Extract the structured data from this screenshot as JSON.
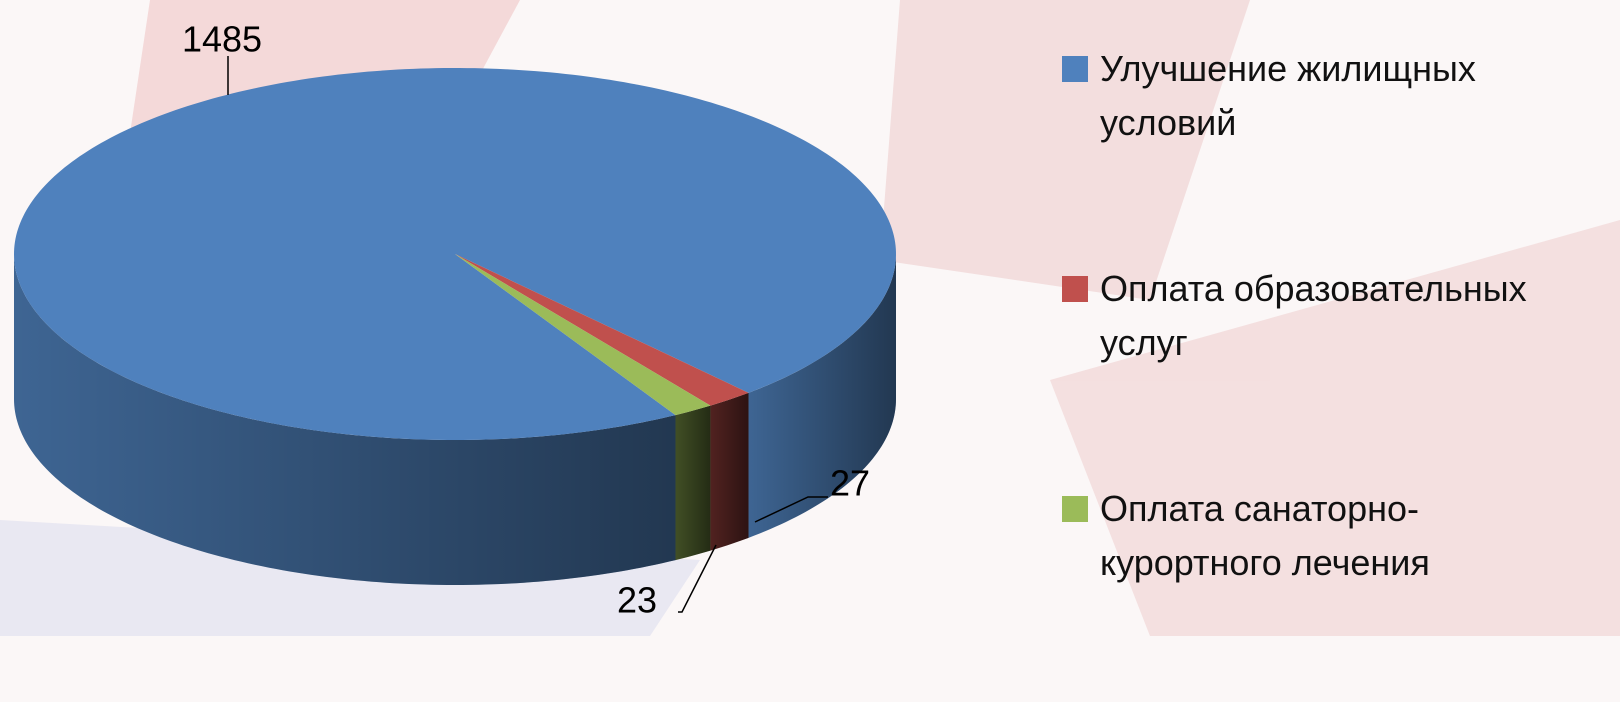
{
  "chart_data": {
    "type": "pie",
    "categories": [
      "Улучшение жилищных условий",
      "Оплата образовательных услуг",
      "Оплата санаторно-курортного лечения"
    ],
    "values": [
      1485,
      27,
      23
    ],
    "colors": [
      "#4f81bd",
      "#c0504d",
      "#9bbb59"
    ],
    "start_angle": 150,
    "legend": "right"
  }
}
